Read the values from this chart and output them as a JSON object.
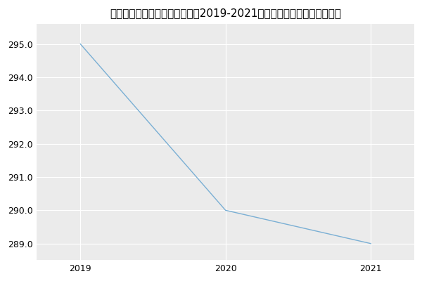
{
  "title": "内蒙古医科大学药学院中药学（2019-2021历年复试）研究生录取分数线",
  "x": [
    2019,
    2020,
    2021
  ],
  "y": [
    295,
    290,
    289
  ],
  "line_color": "#7aafd4",
  "plot_bg_color": "#ebebeb",
  "fig_bg_color": "#ffffff",
  "ylim": [
    288.5,
    295.6
  ],
  "xlim": [
    2018.7,
    2021.3
  ],
  "yticks": [
    289.0,
    290.0,
    291.0,
    292.0,
    293.0,
    294.0,
    295.0
  ],
  "xticks": [
    2019,
    2020,
    2021
  ],
  "title_fontsize": 11,
  "tick_fontsize": 9,
  "grid_color": "#ffffff",
  "line_width": 1.0
}
